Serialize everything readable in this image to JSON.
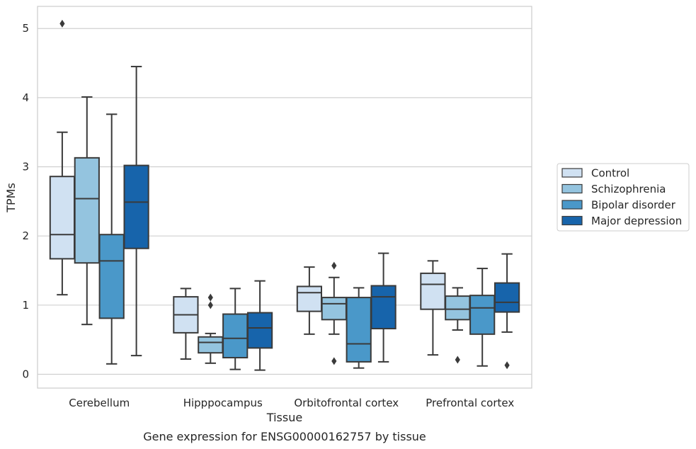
{
  "chart_data": {
    "type": "box",
    "title": "",
    "caption": "Gene expression for ENSG00000162757 by tissue",
    "xlabel": "Tissue",
    "ylabel": "TPMs",
    "ylim": [
      -0.2,
      5.32
    ],
    "yticks": [
      0,
      1,
      2,
      3,
      4,
      5
    ],
    "grid": "horizontal",
    "legend_position": "right",
    "categories": [
      "Cerebellum",
      "Hipppocampus",
      "Orbitofrontal cortex",
      "Prefrontal cortex"
    ],
    "series": [
      {
        "name": "Control",
        "color": "#d0e1f2",
        "boxes": [
          {
            "q1": 1.67,
            "median": 2.02,
            "q3": 2.86,
            "whislo": 1.15,
            "whishi": 3.5,
            "fliers": [
              5.07
            ]
          },
          {
            "q1": 0.6,
            "median": 0.86,
            "q3": 1.12,
            "whislo": 0.22,
            "whishi": 1.24,
            "fliers": []
          },
          {
            "q1": 0.91,
            "median": 1.18,
            "q3": 1.27,
            "whislo": 0.58,
            "whishi": 1.55,
            "fliers": []
          },
          {
            "q1": 0.94,
            "median": 1.3,
            "q3": 1.46,
            "whislo": 0.28,
            "whishi": 1.64,
            "fliers": []
          }
        ]
      },
      {
        "name": "Schizophrenia",
        "color": "#94c4df",
        "boxes": [
          {
            "q1": 1.61,
            "median": 2.54,
            "q3": 3.13,
            "whislo": 0.72,
            "whishi": 4.01,
            "fliers": []
          },
          {
            "q1": 0.31,
            "median": 0.46,
            "q3": 0.54,
            "whislo": 0.16,
            "whishi": 0.59,
            "fliers": [
              1.11,
              1.0
            ]
          },
          {
            "q1": 0.79,
            "median": 1.02,
            "q3": 1.11,
            "whislo": 0.58,
            "whishi": 1.4,
            "fliers": [
              1.57,
              0.19
            ]
          },
          {
            "q1": 0.79,
            "median": 0.94,
            "q3": 1.13,
            "whislo": 0.64,
            "whishi": 1.25,
            "fliers": [
              0.21
            ]
          }
        ]
      },
      {
        "name": "Bipolar disorder",
        "color": "#4a98c9",
        "boxes": [
          {
            "q1": 0.81,
            "median": 1.64,
            "q3": 2.02,
            "whislo": 0.15,
            "whishi": 3.76,
            "fliers": []
          },
          {
            "q1": 0.24,
            "median": 0.52,
            "q3": 0.87,
            "whislo": 0.07,
            "whishi": 1.24,
            "fliers": []
          },
          {
            "q1": 0.18,
            "median": 0.44,
            "q3": 1.11,
            "whislo": 0.09,
            "whishi": 1.25,
            "fliers": []
          },
          {
            "q1": 0.58,
            "median": 0.96,
            "q3": 1.14,
            "whislo": 0.12,
            "whishi": 1.53,
            "fliers": []
          }
        ]
      },
      {
        "name": "Major depression",
        "color": "#1764ab",
        "boxes": [
          {
            "q1": 1.82,
            "median": 2.49,
            "q3": 3.02,
            "whislo": 0.27,
            "whishi": 4.45,
            "fliers": []
          },
          {
            "q1": 0.38,
            "median": 0.67,
            "q3": 0.89,
            "whislo": 0.06,
            "whishi": 1.35,
            "fliers": []
          },
          {
            "q1": 0.66,
            "median": 1.12,
            "q3": 1.28,
            "whislo": 0.18,
            "whishi": 1.75,
            "fliers": []
          },
          {
            "q1": 0.9,
            "median": 1.04,
            "q3": 1.32,
            "whislo": 0.61,
            "whishi": 1.74,
            "fliers": [
              0.13
            ]
          }
        ]
      }
    ]
  }
}
